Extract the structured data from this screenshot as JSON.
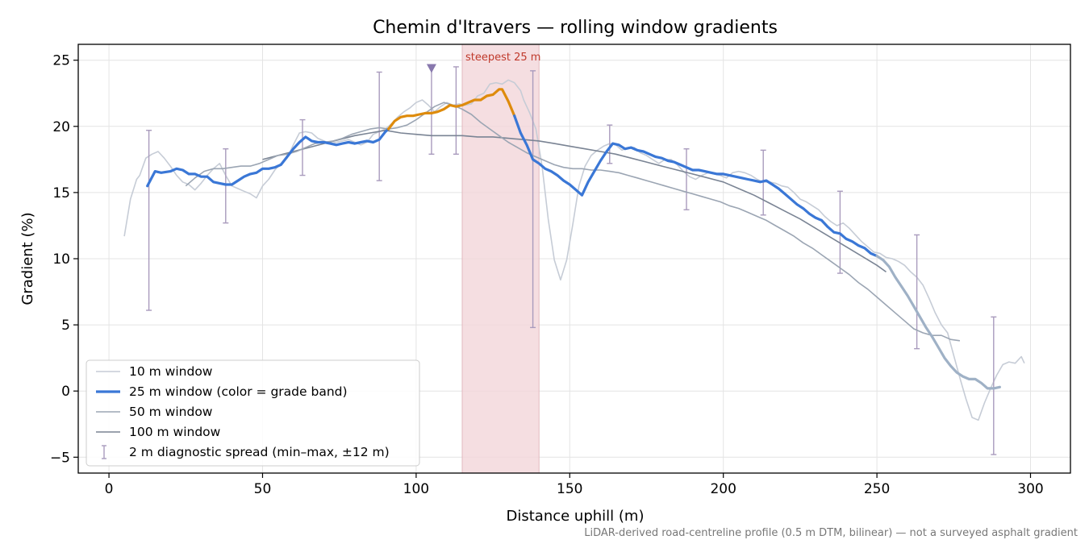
{
  "chart_data": {
    "type": "line",
    "title": "Chemin d'Itravers — rolling window gradients",
    "xlabel": "Distance uphill (m)",
    "ylabel": "Gradient (%)",
    "xlim": [
      -10,
      313
    ],
    "ylim": [
      -6.2,
      26.2
    ],
    "x_ticks": [
      0,
      50,
      100,
      150,
      200,
      250,
      300
    ],
    "y_ticks": [
      -5,
      0,
      5,
      10,
      15,
      20,
      25
    ],
    "grid": true,
    "legend_position": "lower-left",
    "footnote": "LiDAR-derived road-centreline profile (0.5 m DTM, bilinear) — not a surveyed asphalt gradient",
    "highlight": {
      "label": "steepest 25 m",
      "x_range": [
        115,
        140
      ],
      "color": "#f3d6da"
    },
    "marker": {
      "x": 105,
      "y": 24.4,
      "shape": "triangle-down",
      "color": "#8878ad"
    },
    "series": [
      {
        "name": "10 m window",
        "color": "#c6ccd6",
        "x": [
          5,
          7,
          9,
          10,
          12,
          14,
          16,
          18,
          20,
          22,
          24,
          26,
          28,
          30,
          32,
          34,
          36,
          38,
          40,
          42,
          44,
          46,
          48,
          50,
          52,
          54,
          56,
          58,
          60,
          62,
          64,
          66,
          68,
          70,
          72,
          74,
          76,
          78,
          80,
          82,
          84,
          86,
          88,
          90,
          92,
          94,
          96,
          98,
          100,
          102,
          104,
          106,
          108,
          110,
          112,
          114,
          116,
          118,
          120,
          122,
          124,
          126,
          128,
          130,
          132,
          134,
          135,
          137,
          139,
          141,
          143,
          145,
          147,
          149,
          151,
          153,
          155,
          157,
          159,
          161,
          163,
          165,
          167,
          169,
          171,
          173,
          175,
          177,
          179,
          181,
          183,
          185,
          187,
          189,
          191,
          193,
          195,
          197,
          199,
          201,
          203,
          205,
          207,
          209,
          211,
          213,
          215,
          217,
          219,
          221,
          223,
          225,
          227,
          229,
          231,
          233,
          235,
          237,
          239,
          241,
          243,
          245,
          247,
          249,
          251,
          253,
          255,
          257,
          259,
          261,
          263,
          265,
          267,
          269,
          271,
          273,
          275,
          277,
          279,
          281,
          283,
          285,
          287,
          289,
          291,
          293,
          295,
          297,
          298
        ],
        "y": [
          11.7,
          14.5,
          16.0,
          16.3,
          17.6,
          17.9,
          18.1,
          17.6,
          17.0,
          16.3,
          15.8,
          15.6,
          15.2,
          15.7,
          16.3,
          16.8,
          17.2,
          16.3,
          15.5,
          15.3,
          15.1,
          14.9,
          14.6,
          15.5,
          16.0,
          16.7,
          17.2,
          17.6,
          18.6,
          19.5,
          19.6,
          19.5,
          19.1,
          18.9,
          18.7,
          18.8,
          18.9,
          19.0,
          18.8,
          18.6,
          18.8,
          19.4,
          19.6,
          19.8,
          20.2,
          20.7,
          21.1,
          21.4,
          21.8,
          22.0,
          21.6,
          21.1,
          21.5,
          21.8,
          21.6,
          21.7,
          21.6,
          21.7,
          22.3,
          22.5,
          23.2,
          23.3,
          23.2,
          23.5,
          23.3,
          22.7,
          22.0,
          21.0,
          19.8,
          17.0,
          13.0,
          9.9,
          8.4,
          9.9,
          12.6,
          15.5,
          17.0,
          17.8,
          18.2,
          18.5,
          18.7,
          18.6,
          18.2,
          18.4,
          18.4,
          18.0,
          17.8,
          17.5,
          17.2,
          17.5,
          17.5,
          17.1,
          16.6,
          16.2,
          16.0,
          16.3,
          16.5,
          16.4,
          16.3,
          16.1,
          16.5,
          16.6,
          16.5,
          16.3,
          16.0,
          15.8,
          15.8,
          15.7,
          15.5,
          15.4,
          15.0,
          14.5,
          14.3,
          14.0,
          13.7,
          13.2,
          12.8,
          12.5,
          12.7,
          12.3,
          11.8,
          11.3,
          10.9,
          10.5,
          10.4,
          10.1,
          10.0,
          9.8,
          9.5,
          9.0,
          8.6,
          8.0,
          7.0,
          5.9,
          5.0,
          4.4,
          2.7,
          1.0,
          -0.6,
          -2.0,
          -2.2,
          -0.9,
          0.2,
          1.2,
          2.0,
          2.2,
          2.1,
          2.6,
          2.1
        ]
      },
      {
        "name": "25 m window (color = grade band)",
        "color": "#3a77d6",
        "band_colors": {
          "default": "#3a77d6",
          "steep": "#de8b0c",
          "tail": "#9fb1c6"
        },
        "x": [
          12.5,
          15,
          17,
          20,
          22,
          24,
          26,
          28,
          30,
          32,
          34,
          36,
          38,
          40,
          42,
          44,
          46,
          48,
          50,
          52,
          54,
          56,
          58,
          60,
          62,
          64,
          66,
          68,
          70,
          72,
          74,
          76,
          78,
          80,
          82,
          84,
          86,
          88,
          90,
          91,
          93,
          95,
          97,
          99,
          101,
          103,
          105,
          107,
          109,
          111,
          113,
          115,
          117,
          119,
          121,
          123,
          125,
          127,
          128,
          130,
          132,
          134,
          136,
          138,
          140,
          142,
          144,
          146,
          148,
          150,
          152,
          154,
          156,
          158,
          160,
          162,
          164,
          166,
          168,
          170,
          172,
          174,
          176,
          178,
          180,
          182,
          184,
          186,
          188,
          190,
          192,
          194,
          196,
          198,
          200,
          202,
          204,
          206,
          208,
          210,
          212,
          214,
          216,
          218,
          220,
          222,
          224,
          226,
          228,
          230,
          232,
          234,
          236,
          238,
          240,
          242,
          244,
          246,
          248,
          250,
          252,
          254,
          256,
          258,
          260,
          262,
          264,
          266,
          268,
          270,
          272,
          274,
          276,
          278,
          280,
          282,
          284,
          286,
          288,
          290
        ],
        "y": [
          15.5,
          16.6,
          16.5,
          16.6,
          16.8,
          16.7,
          16.4,
          16.4,
          16.2,
          16.2,
          15.8,
          15.7,
          15.6,
          15.6,
          15.9,
          16.2,
          16.4,
          16.5,
          16.8,
          16.8,
          16.9,
          17.1,
          17.7,
          18.3,
          18.8,
          19.2,
          18.9,
          18.8,
          18.8,
          18.7,
          18.6,
          18.7,
          18.8,
          18.7,
          18.8,
          18.9,
          18.8,
          19.0,
          19.6,
          19.8,
          20.4,
          20.7,
          20.8,
          20.8,
          20.9,
          21.0,
          21.0,
          21.1,
          21.3,
          21.6,
          21.5,
          21.6,
          21.8,
          22.0,
          22.0,
          22.3,
          22.4,
          22.8,
          22.8,
          21.9,
          20.8,
          19.5,
          18.6,
          17.5,
          17.2,
          16.8,
          16.6,
          16.3,
          15.9,
          15.6,
          15.2,
          14.8,
          15.8,
          16.6,
          17.4,
          18.1,
          18.7,
          18.6,
          18.3,
          18.4,
          18.2,
          18.1,
          17.9,
          17.7,
          17.6,
          17.4,
          17.3,
          17.1,
          16.9,
          16.7,
          16.7,
          16.6,
          16.5,
          16.4,
          16.4,
          16.3,
          16.2,
          16.1,
          16.0,
          15.9,
          15.8,
          15.9,
          15.6,
          15.3,
          14.9,
          14.5,
          14.1,
          13.8,
          13.4,
          13.1,
          12.9,
          12.4,
          12.0,
          11.9,
          11.5,
          11.3,
          11.0,
          10.8,
          10.4,
          10.2,
          9.9,
          9.4,
          8.6,
          7.9,
          7.2,
          6.4,
          5.6,
          4.8,
          4.1,
          3.3,
          2.5,
          1.9,
          1.4,
          1.1,
          0.9,
          0.9,
          0.6,
          0.2,
          0.2,
          0.3
        ],
        "steep_range": [
          93,
          132
        ],
        "tail_from": 252
      },
      {
        "name": "50 m window",
        "color": "#9ba5b3",
        "x": [
          25,
          28,
          31,
          34,
          37,
          40,
          43,
          46,
          49,
          52,
          55,
          58,
          61,
          64,
          67,
          70,
          73,
          76,
          79,
          82,
          85,
          88,
          91,
          94,
          97,
          100,
          103,
          106,
          109,
          112,
          115,
          118,
          121,
          124,
          127,
          130,
          133,
          136,
          139,
          142,
          145,
          148,
          151,
          154,
          157,
          160,
          163,
          166,
          169,
          172,
          175,
          178,
          181,
          184,
          187,
          190,
          193,
          196,
          199,
          202,
          205,
          208,
          211,
          214,
          217,
          220,
          223,
          226,
          229,
          232,
          235,
          238,
          241,
          244,
          247,
          250,
          253,
          256,
          259,
          262,
          265,
          268,
          271,
          274,
          277
        ],
        "y": [
          15.5,
          16.1,
          16.6,
          16.8,
          16.8,
          16.9,
          17.0,
          17.0,
          17.2,
          17.5,
          17.8,
          17.9,
          18.1,
          18.4,
          18.7,
          18.8,
          18.9,
          19.1,
          19.4,
          19.6,
          19.8,
          19.9,
          19.8,
          19.9,
          20.1,
          20.5,
          21.0,
          21.5,
          21.8,
          21.6,
          21.3,
          20.9,
          20.3,
          19.8,
          19.3,
          18.8,
          18.4,
          18.0,
          17.7,
          17.4,
          17.1,
          16.9,
          16.8,
          16.8,
          16.7,
          16.7,
          16.6,
          16.5,
          16.3,
          16.1,
          15.9,
          15.7,
          15.5,
          15.3,
          15.1,
          14.9,
          14.7,
          14.5,
          14.3,
          14.0,
          13.8,
          13.5,
          13.2,
          12.9,
          12.5,
          12.1,
          11.7,
          11.2,
          10.8,
          10.3,
          9.8,
          9.3,
          8.8,
          8.2,
          7.7,
          7.1,
          6.5,
          5.9,
          5.3,
          4.7,
          4.4,
          4.2,
          4.2,
          3.9,
          3.8
        ]
      },
      {
        "name": "100 m window",
        "color": "#7a8494",
        "x": [
          50,
          55,
          60,
          65,
          70,
          75,
          80,
          85,
          90,
          95,
          100,
          105,
          110,
          115,
          120,
          125,
          130,
          135,
          140,
          145,
          150,
          155,
          160,
          165,
          170,
          175,
          180,
          185,
          190,
          195,
          200,
          205,
          210,
          215,
          220,
          225,
          230,
          235,
          240,
          245,
          250,
          253
        ],
        "y": [
          17.5,
          17.8,
          18.1,
          18.4,
          18.7,
          19.0,
          19.3,
          19.5,
          19.7,
          19.5,
          19.4,
          19.3,
          19.3,
          19.3,
          19.2,
          19.2,
          19.1,
          19.0,
          18.9,
          18.7,
          18.5,
          18.3,
          18.1,
          17.9,
          17.6,
          17.3,
          17.0,
          16.7,
          16.4,
          16.1,
          15.8,
          15.3,
          14.8,
          14.2,
          13.6,
          13.0,
          12.3,
          11.6,
          10.9,
          10.2,
          9.5,
          9.0
        ]
      },
      {
        "name": "2 m diagnostic spread (min–max, ±12 m)",
        "color": "#a99bbd",
        "errorbars": [
          {
            "x": 13,
            "min": 6.1,
            "max": 19.7
          },
          {
            "x": 38,
            "min": 12.7,
            "max": 18.3
          },
          {
            "x": 63,
            "min": 16.3,
            "max": 20.5
          },
          {
            "x": 88,
            "min": 15.9,
            "max": 24.1
          },
          {
            "x": 105,
            "min": 17.9,
            "max": 24.5
          },
          {
            "x": 113,
            "min": 17.9,
            "max": 24.5
          },
          {
            "x": 138,
            "min": 4.8,
            "max": 24.2
          },
          {
            "x": 163,
            "min": 17.2,
            "max": 20.1
          },
          {
            "x": 188,
            "min": 13.7,
            "max": 18.3
          },
          {
            "x": 213,
            "min": 13.3,
            "max": 18.2
          },
          {
            "x": 238,
            "min": 8.9,
            "max": 15.1
          },
          {
            "x": 263,
            "min": 3.2,
            "max": 11.8
          },
          {
            "x": 288,
            "min": -4.8,
            "max": 5.6
          }
        ]
      }
    ]
  }
}
